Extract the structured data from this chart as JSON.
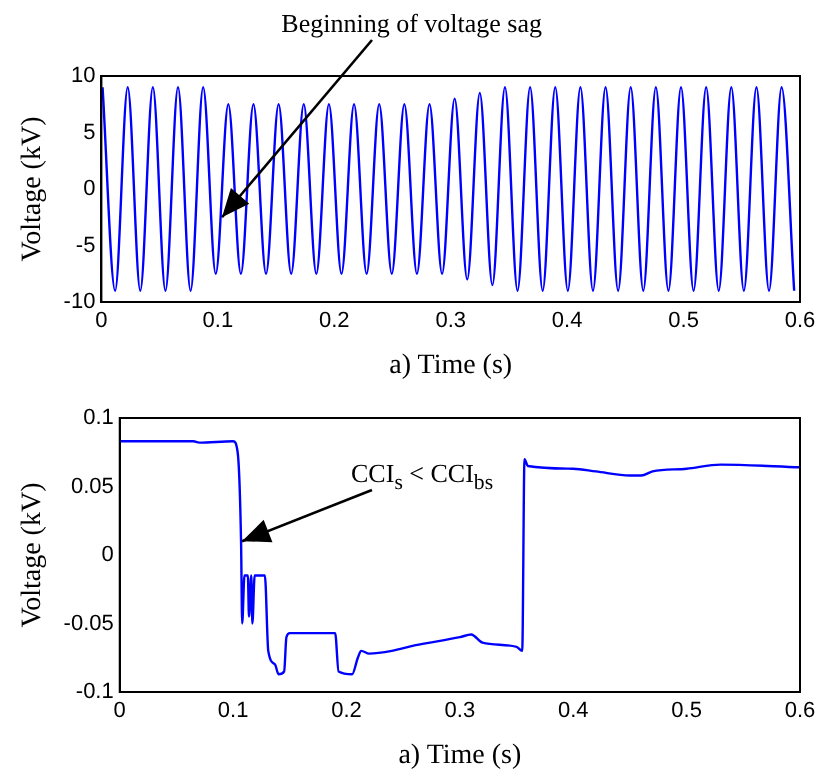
{
  "chart_data": [
    {
      "type": "line",
      "xlabel": "a) Time (s)",
      "ylabel": "Voltage (kV)",
      "xlim": [
        0,
        0.6
      ],
      "xticks": [
        0,
        0.1,
        0.2,
        0.3,
        0.4,
        0.5,
        0.6
      ],
      "ylim": [
        -10,
        10
      ],
      "yticks": [
        -10,
        -5,
        0,
        5,
        10
      ],
      "grid": false,
      "legend": false,
      "annotations": [
        {
          "text": "Beginning of voltage sag",
          "x": 0.103,
          "y": -2.5
        }
      ],
      "series": [
        {
          "color": "#0000ff",
          "x": [
            0.001,
            0.0118,
            0.0226,
            0.0334,
            0.0442,
            0.055,
            0.0658,
            0.0766,
            0.0874,
            0.0982,
            0.109,
            0.1198,
            0.1306,
            0.1414,
            0.1522,
            0.163,
            0.1738,
            0.1846,
            0.1954,
            0.2062,
            0.217,
            0.2278,
            0.2386,
            0.2494,
            0.2602,
            0.271,
            0.2818,
            0.2926,
            0.3034,
            0.3142,
            0.325,
            0.3358,
            0.3466,
            0.3574,
            0.3682,
            0.379,
            0.3898,
            0.4006,
            0.4114,
            0.4222,
            0.433,
            0.4438,
            0.4546,
            0.4654,
            0.4762,
            0.487,
            0.4978,
            0.5086,
            0.5194,
            0.5302,
            0.541,
            0.5518,
            0.5626,
            0.5734,
            0.5842,
            0.595
          ],
          "values": [
            9,
            -9,
            9,
            -9,
            9,
            -9,
            9,
            -9,
            9,
            -7.5,
            7.5,
            -7.5,
            7.5,
            -7.5,
            7.5,
            -7.5,
            7.5,
            -7.5,
            7.5,
            -7.5,
            7.5,
            -7.5,
            7.5,
            -7.5,
            7.5,
            -7.5,
            7.5,
            -7.5,
            8,
            -8,
            8.5,
            -8.5,
            9,
            -9,
            9,
            -9,
            9,
            -9,
            9,
            -9,
            9,
            -9,
            9,
            -9,
            9,
            -9,
            9,
            -9,
            9,
            -9,
            9,
            -9,
            9,
            -9,
            9,
            -9
          ]
        }
      ]
    },
    {
      "type": "line",
      "xlabel": "a) Time (s)",
      "ylabel": "Voltage (kV)",
      "xlim": [
        0,
        0.6
      ],
      "xticks": [
        0,
        0.1,
        0.2,
        0.3,
        0.4,
        0.5,
        0.6
      ],
      "ylim": [
        -0.1,
        0.1
      ],
      "yticks": [
        -0.1,
        -0.05,
        0,
        0.05,
        0.1
      ],
      "grid": false,
      "legend": false,
      "annotations": [
        {
          "text": "CCI$_{s}$ < CCI$_{bs}$",
          "x": 0.107,
          "y": 0.01
        }
      ],
      "series": [
        {
          "color": "#0000ff",
          "x": [
            0,
            0.065,
            0.07,
            0.1,
            0.104,
            0.107,
            0.108,
            0.11,
            0.113,
            0.114,
            0.116,
            0.117,
            0.119,
            0.128,
            0.131,
            0.137,
            0.14,
            0.145,
            0.147,
            0.15,
            0.19,
            0.193,
            0.205,
            0.21,
            0.213,
            0.22,
            0.24,
            0.26,
            0.3,
            0.31,
            0.32,
            0.35,
            0.355,
            0.357,
            0.36,
            0.4,
            0.42,
            0.45,
            0.46,
            0.47,
            0.5,
            0.53,
            0.6
          ],
          "values": [
            0.083,
            0.083,
            0.082,
            0.083,
            0.075,
            0.01,
            -0.05,
            -0.015,
            -0.015,
            -0.045,
            -0.015,
            -0.05,
            -0.015,
            -0.015,
            -0.07,
            -0.08,
            -0.087,
            -0.085,
            -0.06,
            -0.057,
            -0.057,
            -0.085,
            -0.087,
            -0.075,
            -0.07,
            -0.072,
            -0.07,
            -0.066,
            -0.06,
            -0.058,
            -0.064,
            -0.067,
            -0.07,
            0.07,
            0.065,
            0.063,
            0.061,
            0.058,
            0.058,
            0.061,
            0.063,
            0.066,
            0.064
          ]
        }
      ]
    }
  ]
}
